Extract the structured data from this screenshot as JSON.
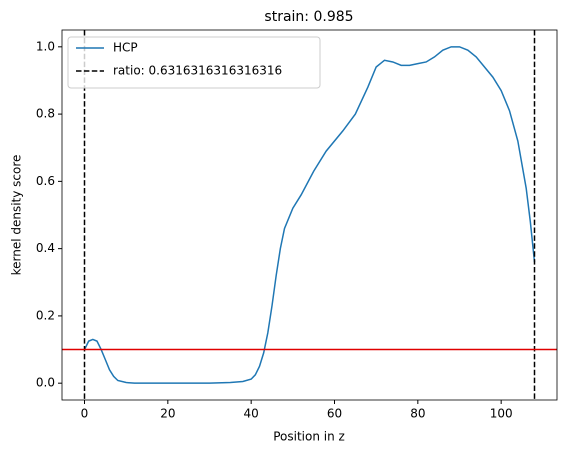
{
  "chart_data": {
    "type": "line",
    "title": "strain: 0.985",
    "x_label": "Position in z",
    "y_label": "kernel density score",
    "x": [
      0,
      1,
      2,
      3,
      4,
      5,
      6,
      7,
      8,
      10,
      12,
      20,
      30,
      35,
      38,
      40,
      41,
      42,
      43,
      44,
      45,
      46,
      47,
      48,
      50,
      52,
      55,
      58,
      62,
      65,
      68,
      70,
      72,
      74,
      76,
      78,
      80,
      82,
      84,
      86,
      88,
      90,
      92,
      94,
      96,
      98,
      100,
      102,
      104,
      106,
      107,
      108
    ],
    "series": [
      {
        "name": "HCP",
        "color": "#1f77b4",
        "values": [
          0.1,
          0.125,
          0.13,
          0.125,
          0.1,
          0.07,
          0.04,
          0.02,
          0.008,
          0.002,
          0,
          0,
          0,
          0.002,
          0.005,
          0.012,
          0.025,
          0.05,
          0.09,
          0.15,
          0.23,
          0.32,
          0.4,
          0.46,
          0.52,
          0.56,
          0.63,
          0.69,
          0.75,
          0.8,
          0.88,
          0.94,
          0.96,
          0.955,
          0.945,
          0.945,
          0.95,
          0.955,
          0.97,
          0.99,
          1.0,
          1.0,
          0.99,
          0.97,
          0.94,
          0.91,
          0.87,
          0.81,
          0.72,
          0.58,
          0.48,
          0.36
        ]
      }
    ],
    "vlines": {
      "name": "ratio: 0.6316316316316316",
      "color": "#000000",
      "x": [
        0,
        108
      ]
    },
    "hline": {
      "y": 0.1,
      "color": "#e00000"
    },
    "xlim": [
      -5.4,
      113.4
    ],
    "ylim": [
      -0.05,
      1.05
    ],
    "xticks": [
      0,
      20,
      40,
      60,
      80,
      100
    ],
    "yticks": [
      {
        "value": 0,
        "label": "0.0"
      },
      {
        "value": 0.2,
        "label": "0.2"
      },
      {
        "value": 0.4,
        "label": "0.4"
      },
      {
        "value": 0.6,
        "label": "0.6"
      },
      {
        "value": 0.8,
        "label": "0.8"
      },
      {
        "value": 1,
        "label": "1.0"
      }
    ],
    "legend": "upper left"
  }
}
